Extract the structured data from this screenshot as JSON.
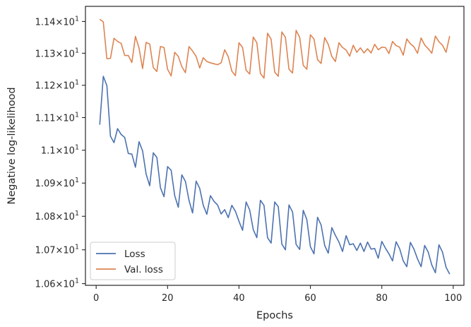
{
  "chart_data": {
    "type": "line",
    "xlabel": "Epochs",
    "ylabel": "Negative log-likelihood",
    "xlim": [
      -3,
      103
    ],
    "ylim": [
      10.595,
      11.448
    ],
    "y_scale": "log",
    "grid": false,
    "legend_position": "lower-left",
    "x_ticks": [
      0,
      20,
      40,
      60,
      80,
      100
    ],
    "x_tick_labels": [
      "0",
      "20",
      "40",
      "60",
      "80",
      "100"
    ],
    "y_ticks": [
      {
        "value": 10.6,
        "mantissa": "1.06",
        "base": "10",
        "exp": "1"
      },
      {
        "value": 10.7,
        "mantissa": "1.07",
        "base": "10",
        "exp": "1"
      },
      {
        "value": 10.8,
        "mantissa": "1.08",
        "base": "10",
        "exp": "1"
      },
      {
        "value": 10.9,
        "mantissa": "1.09",
        "base": "10",
        "exp": "1"
      },
      {
        "value": 11.0,
        "mantissa": "1.1",
        "base": "10",
        "exp": "1"
      },
      {
        "value": 11.1,
        "mantissa": "1.11",
        "base": "10",
        "exp": "1"
      },
      {
        "value": 11.2,
        "mantissa": "1.12",
        "base": "10",
        "exp": "1"
      },
      {
        "value": 11.3,
        "mantissa": "1.13",
        "base": "10",
        "exp": "1"
      },
      {
        "value": 11.4,
        "mantissa": "1.14",
        "base": "10",
        "exp": "1"
      }
    ],
    "x": [
      1,
      2,
      3,
      4,
      5,
      6,
      7,
      8,
      9,
      10,
      11,
      12,
      13,
      14,
      15,
      16,
      17,
      18,
      19,
      20,
      21,
      22,
      23,
      24,
      25,
      26,
      27,
      28,
      29,
      30,
      31,
      32,
      33,
      34,
      35,
      36,
      37,
      38,
      39,
      40,
      41,
      42,
      43,
      44,
      45,
      46,
      47,
      48,
      49,
      50,
      51,
      52,
      53,
      54,
      55,
      56,
      57,
      58,
      59,
      60,
      61,
      62,
      63,
      64,
      65,
      66,
      67,
      68,
      69,
      70,
      71,
      72,
      73,
      74,
      75,
      76,
      77,
      78,
      79,
      80,
      81,
      82,
      83,
      84,
      85,
      86,
      87,
      88,
      89,
      90,
      91,
      92,
      93,
      94,
      95,
      96,
      97,
      98,
      99
    ],
    "series": [
      {
        "name": "Loss",
        "color": "#4c72b0",
        "values": [
          11.078,
          11.228,
          11.199,
          11.043,
          11.023,
          11.066,
          11.048,
          11.039,
          10.99,
          10.988,
          10.948,
          11.026,
          10.998,
          10.927,
          10.892,
          10.992,
          10.978,
          10.886,
          10.859,
          10.95,
          10.939,
          10.862,
          10.827,
          10.925,
          10.905,
          10.848,
          10.81,
          10.906,
          10.884,
          10.833,
          10.806,
          10.862,
          10.845,
          10.834,
          10.807,
          10.82,
          10.796,
          10.833,
          10.815,
          10.785,
          10.758,
          10.843,
          10.819,
          10.76,
          10.736,
          10.848,
          10.833,
          10.736,
          10.72,
          10.843,
          10.829,
          10.717,
          10.7,
          10.834,
          10.813,
          10.716,
          10.701,
          10.818,
          10.79,
          10.709,
          10.688,
          10.797,
          10.774,
          10.713,
          10.69,
          10.766,
          10.743,
          10.723,
          10.695,
          10.742,
          10.715,
          10.718,
          10.698,
          10.72,
          10.695,
          10.723,
          10.702,
          10.704,
          10.675,
          10.725,
          10.705,
          10.688,
          10.667,
          10.724,
          10.703,
          10.667,
          10.65,
          10.722,
          10.702,
          10.673,
          10.65,
          10.713,
          10.693,
          10.655,
          10.632,
          10.715,
          10.693,
          10.648,
          10.628
        ]
      },
      {
        "name": "Val. loss",
        "color": "#dd8452",
        "values": [
          11.407,
          11.399,
          11.283,
          11.284,
          11.347,
          11.337,
          11.331,
          11.293,
          11.293,
          11.271,
          11.353,
          11.317,
          11.252,
          11.334,
          11.329,
          11.255,
          11.243,
          11.321,
          11.318,
          11.25,
          11.229,
          11.303,
          11.29,
          11.258,
          11.239,
          11.321,
          11.307,
          11.29,
          11.254,
          11.286,
          11.274,
          11.27,
          11.267,
          11.264,
          11.27,
          11.311,
          11.289,
          11.244,
          11.23,
          11.333,
          11.318,
          11.247,
          11.235,
          11.351,
          11.333,
          11.237,
          11.222,
          11.363,
          11.344,
          11.241,
          11.228,
          11.367,
          11.35,
          11.25,
          11.238,
          11.372,
          11.35,
          11.262,
          11.25,
          11.358,
          11.345,
          11.28,
          11.268,
          11.349,
          11.328,
          11.29,
          11.274,
          11.333,
          11.318,
          11.31,
          11.291,
          11.325,
          11.303,
          11.317,
          11.301,
          11.314,
          11.301,
          11.328,
          11.311,
          11.319,
          11.318,
          11.299,
          11.337,
          11.324,
          11.319,
          11.294,
          11.345,
          11.33,
          11.32,
          11.3,
          11.348,
          11.326,
          11.314,
          11.3,
          11.354,
          11.336,
          11.325,
          11.303,
          11.354
        ]
      }
    ]
  }
}
